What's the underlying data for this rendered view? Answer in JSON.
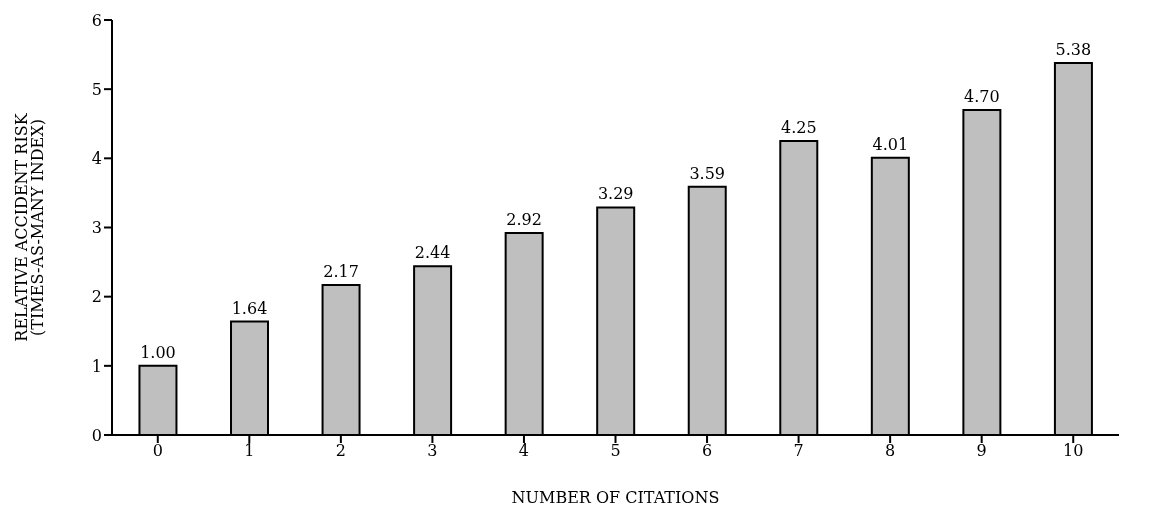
{
  "chart_data": {
    "type": "bar",
    "xlabel": "NUMBER OF CITATIONS",
    "ylabel": "RELATIVE ACCIDENT RISK\n(TIMES-AS-MANY INDEX)",
    "categories": [
      "0",
      "1",
      "2",
      "3",
      "4",
      "5",
      "6",
      "7",
      "8",
      "9",
      "10"
    ],
    "values": [
      1.0,
      1.64,
      2.17,
      2.44,
      2.92,
      3.29,
      3.59,
      4.25,
      4.01,
      4.7,
      5.38
    ],
    "value_labels": [
      "1.00",
      "1.64",
      "2.17",
      "2.44",
      "2.92",
      "3.29",
      "3.59",
      "4.25",
      "4.01",
      "4.70",
      "5.38"
    ],
    "color": "#bfbfbf",
    "ylim": [
      0,
      6
    ],
    "yticks": [
      0,
      1,
      2,
      3,
      4,
      5,
      6
    ],
    "grid": false,
    "legend": false
  }
}
